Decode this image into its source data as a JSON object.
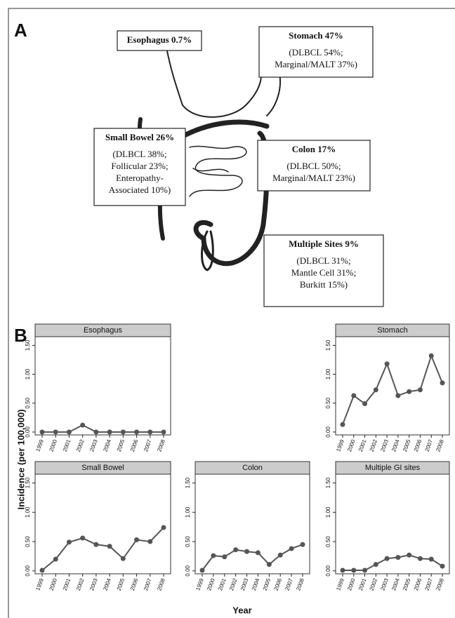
{
  "panel_a": {
    "label": "A",
    "boxes": [
      {
        "title": "Esophagus 0.7%"
      },
      {
        "title": "Stomach 47%",
        "lines": [
          "(DLBCL 54%;",
          "Marginal/MALT 37%)"
        ]
      },
      {
        "title": "Small Bowel 26%",
        "lines": [
          "(DLBCL 38%;",
          "Follicular 23%;",
          "Enteropathy-",
          "Associated 10%)"
        ]
      },
      {
        "title": "Colon 17%",
        "lines": [
          "(DLBCL 50%;",
          "Marginal/MALT 23%)"
        ]
      },
      {
        "title": "Multiple Sites 9%",
        "lines": [
          "(DLBCL 31%;",
          "Mantle Cell 31%;",
          "Burkitt 15%)"
        ]
      }
    ]
  },
  "panel_b": {
    "label": "B",
    "y_label": "Incidence (per 100,000)",
    "x_label": "Year"
  },
  "chart_data": [
    {
      "type": "line",
      "title": "Esophagus",
      "color": "#555555",
      "categories": [
        "1999",
        "2000",
        "2001",
        "2002",
        "2003",
        "2004",
        "2005",
        "2006",
        "2007",
        "2008"
      ],
      "values": [
        0,
        0,
        0,
        0.12,
        0,
        0,
        0,
        0,
        0,
        0
      ],
      "ylim": [
        -0.05,
        1.65
      ],
      "yticks": [
        {
          "value": 0,
          "label": "0.00"
        },
        {
          "value": 0.5,
          "label": "0.50"
        },
        {
          "value": 1,
          "label": "1.00"
        },
        {
          "value": 1.5,
          "label": "1.50"
        }
      ]
    },
    {
      "type": "line",
      "title": "Stomach",
      "color": "#555555",
      "categories": [
        "1999",
        "2000",
        "2001",
        "2002",
        "2003",
        "2004",
        "2005",
        "2006",
        "2007",
        "2008"
      ],
      "values": [
        0.13,
        0.63,
        0.49,
        0.73,
        1.18,
        0.63,
        0.7,
        0.73,
        1.32,
        0.85
      ],
      "ylim": [
        -0.05,
        1.65
      ],
      "yticks": [
        {
          "value": 0,
          "label": "0.00"
        },
        {
          "value": 0.5,
          "label": "0.50"
        },
        {
          "value": 1,
          "label": "1.00"
        },
        {
          "value": 1.5,
          "label": "1.50"
        }
      ]
    },
    {
      "type": "line",
      "title": "Small Bowel",
      "color": "#555555",
      "categories": [
        "1999",
        "2000",
        "2001",
        "2002",
        "2003",
        "2004",
        "2005",
        "2006",
        "2007",
        "2008"
      ],
      "values": [
        0.01,
        0.2,
        0.49,
        0.56,
        0.45,
        0.42,
        0.21,
        0.53,
        0.5,
        0.74
      ],
      "ylim": [
        -0.05,
        1.65
      ],
      "yticks": [
        {
          "value": 0,
          "label": "0.00"
        },
        {
          "value": 0.5,
          "label": "0.50"
        },
        {
          "value": 1,
          "label": "1.00"
        },
        {
          "value": 1.5,
          "label": "1.50"
        }
      ]
    },
    {
      "type": "line",
      "title": "Colon",
      "color": "#555555",
      "categories": [
        "1999",
        "2000",
        "2001",
        "2002",
        "2003",
        "2004",
        "2005",
        "2006",
        "2007",
        "2008"
      ],
      "values": [
        0.01,
        0.26,
        0.24,
        0.36,
        0.33,
        0.31,
        0.11,
        0.27,
        0.38,
        0.45
      ],
      "ylim": [
        -0.05,
        1.65
      ],
      "yticks": [
        {
          "value": 0,
          "label": "0.00"
        },
        {
          "value": 0.5,
          "label": "0.50"
        },
        {
          "value": 1,
          "label": "1.00"
        },
        {
          "value": 1.5,
          "label": "1.50"
        }
      ]
    },
    {
      "type": "line",
      "title": "Multiple GI sites",
      "color": "#555555",
      "categories": [
        "1999",
        "2000",
        "2001",
        "2002",
        "2003",
        "2004",
        "2005",
        "2006",
        "2007",
        "2008"
      ],
      "values": [
        0.01,
        0.01,
        0.01,
        0.11,
        0.21,
        0.23,
        0.27,
        0.21,
        0.2,
        0.08
      ],
      "ylim": [
        -0.05,
        1.65
      ],
      "yticks": [
        {
          "value": 0,
          "label": "0.00"
        },
        {
          "value": 0.5,
          "label": "0.50"
        },
        {
          "value": 1,
          "label": "1.00"
        },
        {
          "value": 1.5,
          "label": "1.50"
        }
      ]
    }
  ]
}
